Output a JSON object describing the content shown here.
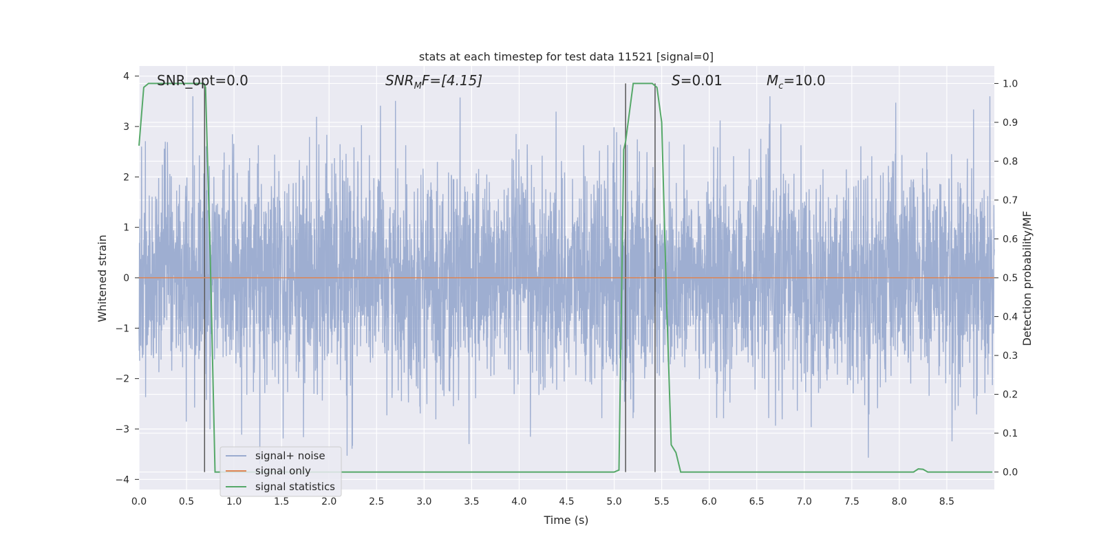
{
  "chart_data": {
    "type": "line",
    "title": "stats at each timestep for test data 11521 [signal=0]",
    "xlabel": "Time (s)",
    "ylabel": "Whitened strain",
    "y2label": "Detection probability/MF",
    "xlim": [
      0,
      9.0
    ],
    "ylim": [
      -4.2,
      4.2
    ],
    "y2lim": [
      -0.045,
      1.045
    ],
    "x_ticks": [
      "0.0",
      "0.5",
      "1.0",
      "1.5",
      "2.0",
      "2.5",
      "3.0",
      "3.5",
      "4.0",
      "4.5",
      "5.0",
      "5.5",
      "6.0",
      "6.5",
      "7.0",
      "7.5",
      "8.0",
      "8.5"
    ],
    "y_ticks": [
      "4",
      "3",
      "2",
      "1",
      "0",
      "−1",
      "−2",
      "−3",
      "−4"
    ],
    "y2_ticks": [
      "1.0",
      "0.9",
      "0.8",
      "0.7",
      "0.6",
      "0.5",
      "0.4",
      "0.3",
      "0.2",
      "0.1",
      "0.0"
    ],
    "grid": true,
    "legend_position": "lower-left",
    "annotations": {
      "snr_opt": "SNR_opt=0.0",
      "snr_mf_prefix": "SNR",
      "snr_mf_sub": "M",
      "snr_mf_rest": "F=[4.15]",
      "s_prefix": "S",
      "s_rest": "=0.01",
      "mc_prefix": "M",
      "mc_sub": "c",
      "mc_rest": "=10.0"
    },
    "series": [
      {
        "name": "signal+ noise",
        "color": "#9aabcf",
        "description_values": "whitened noise, approximately Gaussian, std ~1, range -3.7 to 3.6",
        "values_range": [
          -3.7,
          3.6
        ]
      },
      {
        "name": "signal only",
        "color": "#dd8452",
        "x": [
          0,
          9.0
        ],
        "y": [
          0,
          0
        ]
      },
      {
        "name": "signal statistics",
        "color": "#55a868",
        "axis": "right",
        "x": [
          0,
          0.05,
          0.1,
          0.2,
          0.68,
          0.7,
          0.75,
          0.8,
          1.0,
          2.0,
          3.0,
          4.0,
          4.8,
          5.0,
          5.05,
          5.1,
          5.12,
          5.2,
          5.4,
          5.45,
          5.5,
          5.55,
          5.6,
          5.65,
          5.7,
          5.8,
          6.0,
          7.0,
          8.0,
          8.15,
          8.2,
          8.25,
          8.3,
          8.5,
          8.98
        ],
        "y": [
          0.84,
          0.99,
          1.0,
          1.0,
          1.0,
          0.99,
          0.55,
          0.0,
          0.0,
          0.0,
          0.0,
          0.0,
          0.0,
          0.0,
          0.005,
          0.83,
          0.85,
          1.0,
          1.0,
          0.99,
          0.9,
          0.45,
          0.07,
          0.05,
          0.0,
          0.0,
          0.0,
          0.0,
          0.0,
          0.0,
          0.008,
          0.007,
          0.0,
          0.0,
          0.0
        ]
      }
    ],
    "vertical_lines": [
      0.69,
      5.12,
      5.43
    ]
  }
}
